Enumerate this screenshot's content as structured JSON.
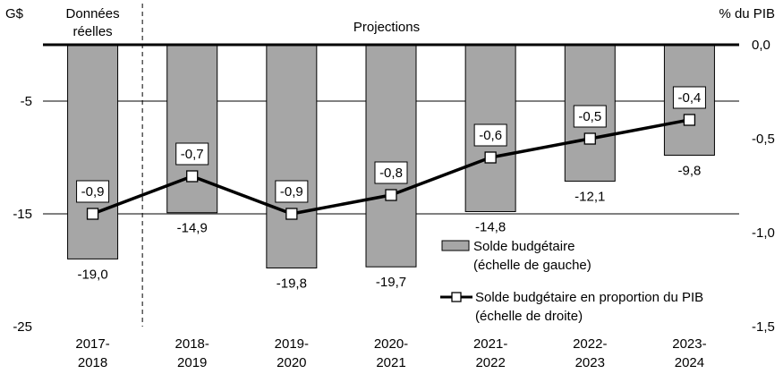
{
  "chart_data": {
    "type": "bar",
    "categories": [
      [
        "2017-",
        "2018"
      ],
      [
        "2018-",
        "2019"
      ],
      [
        "2019-",
        "2020"
      ],
      [
        "2020-",
        "2021"
      ],
      [
        "2021-",
        "2022"
      ],
      [
        "2022-",
        "2023"
      ],
      [
        "2023-",
        "2024"
      ]
    ],
    "series": [
      {
        "name": "Solde budgétaire (échelle de gauche)",
        "type": "bar",
        "axis": "left",
        "values": [
          -19.0,
          -14.9,
          -19.8,
          -19.7,
          -14.8,
          -12.1,
          -9.8
        ],
        "labels": [
          "-19,0",
          "-14,9",
          "-19,8",
          "-19,7",
          "-14,8",
          "-12,1",
          "-9,8"
        ],
        "color": "#a6a6a6"
      },
      {
        "name": "Solde budgétaire en proportion du PIB (échelle de droite)",
        "type": "line",
        "axis": "right",
        "values": [
          -0.9,
          -0.7,
          -0.9,
          -0.8,
          -0.6,
          -0.5,
          -0.4
        ],
        "labels": [
          "-0,9",
          "-0,7",
          "-0,9",
          "-0,8",
          "-0,6",
          "-0,5",
          "-0,4"
        ],
        "color": "#000000"
      }
    ],
    "left_axis": {
      "title": "G$",
      "ylim": [
        -25,
        0
      ],
      "ticks": [
        -5,
        -15,
        -25
      ],
      "tick_labels": [
        "-5",
        "-15",
        "-25"
      ]
    },
    "right_axis": {
      "title": "% du PIB",
      "ylim": [
        -1.5,
        0
      ],
      "ticks": [
        0,
        -0.5,
        -1.0,
        -1.5
      ],
      "tick_labels": [
        "0,0",
        "-0,5",
        "-1,0",
        "-1,5"
      ]
    },
    "gridlines": [
      -5,
      -15
    ],
    "annotations": {
      "actual_label": [
        "Données",
        "réelles"
      ],
      "projection_label": "Projections",
      "divider_after_category": 0
    },
    "legend": {
      "placement": "bottom-right",
      "entries": [
        {
          "lines": [
            "Solde budgétaire",
            "(échelle de gauche)"
          ],
          "symbol": "bar"
        },
        {
          "lines": [
            "Solde budgétaire en proportion du PIB",
            "(échelle de droite)"
          ],
          "symbol": "line-marker"
        }
      ]
    }
  }
}
